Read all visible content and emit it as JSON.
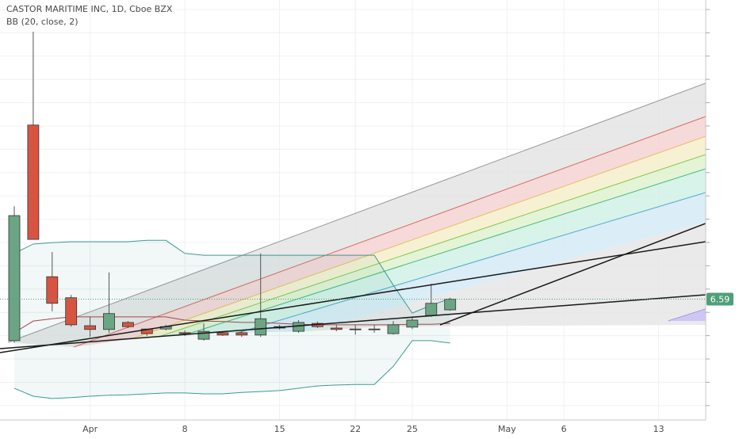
{
  "chart_data": {
    "type": "candlestick",
    "title": "CASTOR MARITIME INC, 1D, Cboe BZX",
    "subtitle": "BB (20, close, 2)",
    "categories": [
      null,
      null,
      null,
      null,
      "Apr",
      null,
      null,
      null,
      null,
      "8",
      null,
      null,
      null,
      null,
      "15",
      null,
      null,
      null,
      "22",
      null,
      null,
      "25",
      null,
      null,
      null,
      null,
      "May",
      null,
      null,
      "6",
      null,
      null,
      null,
      null,
      "13",
      null
    ],
    "open": [
      5.7,
      10.32,
      7.07,
      6.62,
      6.02,
      5.94,
      6.09,
      5.95,
      5.95,
      5.87,
      5.73,
      5.87,
      5.87,
      5.82,
      6.0,
      5.9,
      6.07,
      5.97,
      5.95,
      5.95,
      5.85,
      5.99,
      6.24,
      6.36,
      null,
      null,
      null,
      null,
      null,
      null,
      null,
      null,
      null,
      null,
      null,
      null
    ],
    "high": [
      8.58,
      12.32,
      7.6,
      6.68,
      6.21,
      7.16,
      6.12,
      5.95,
      6.04,
      5.92,
      6.07,
      5.88,
      5.9,
      7.57,
      6.04,
      6.14,
      6.11,
      6.04,
      6.04,
      6.04,
      6.12,
      6.21,
      6.92,
      6.62,
      null,
      null,
      null,
      null,
      null,
      null,
      null,
      null,
      null,
      null,
      null,
      null
    ],
    "low": [
      5.66,
      7.87,
      6.33,
      6.0,
      5.78,
      5.87,
      5.97,
      5.8,
      5.92,
      5.8,
      5.7,
      5.8,
      5.78,
      5.78,
      5.94,
      5.87,
      5.97,
      5.9,
      5.83,
      5.87,
      5.83,
      5.95,
      6.21,
      6.34,
      null,
      null,
      null,
      null,
      null,
      null,
      null,
      null,
      null,
      null,
      null,
      null
    ],
    "close": [
      8.38,
      7.87,
      6.5,
      6.04,
      5.94,
      6.28,
      6.0,
      5.85,
      6.0,
      5.85,
      5.9,
      5.82,
      5.82,
      6.17,
      5.97,
      6.09,
      6.0,
      5.94,
      5.94,
      5.94,
      6.04,
      6.14,
      6.5,
      6.59,
      null,
      null,
      null,
      null,
      null,
      null,
      null,
      null,
      null,
      null,
      null,
      null
    ],
    "bb_upper": [
      7.57,
      7.77,
      7.8,
      7.82,
      7.82,
      7.82,
      7.82,
      7.85,
      7.85,
      7.57,
      7.53,
      7.53,
      7.53,
      7.53,
      7.53,
      7.53,
      7.53,
      7.53,
      7.53,
      7.53,
      6.89,
      6.29,
      6.46,
      6.6,
      null,
      null,
      null,
      null,
      null,
      null,
      null,
      null,
      null,
      null,
      null,
      null
    ],
    "bb_middle": [
      5.87,
      6.12,
      6.17,
      6.21,
      6.21,
      6.21,
      6.21,
      6.21,
      6.21,
      6.14,
      6.12,
      6.11,
      6.09,
      6.09,
      6.07,
      6.05,
      6.04,
      6.04,
      6.04,
      6.04,
      6.04,
      6.05,
      6.05,
      6.07,
      null,
      null,
      null,
      null,
      null,
      null,
      null,
      null,
      null,
      null,
      null,
      null
    ],
    "bb_lower": [
      4.68,
      4.51,
      4.46,
      4.48,
      4.51,
      4.53,
      4.54,
      4.56,
      4.58,
      4.58,
      4.56,
      4.56,
      4.59,
      4.61,
      4.63,
      4.68,
      4.73,
      4.75,
      4.76,
      4.76,
      5.15,
      5.7,
      5.7,
      5.65,
      null,
      null,
      null,
      null,
      null,
      null,
      null,
      null,
      null,
      null,
      null,
      null
    ],
    "up_color": "#6ba583",
    "down_color": "#d75442",
    "band_color": "#3d9b93",
    "middle_color": "#a3474c",
    "last_price": 6.59,
    "last_price_color": "#4f9f78",
    "ylim": [
      4,
      13
    ]
  }
}
